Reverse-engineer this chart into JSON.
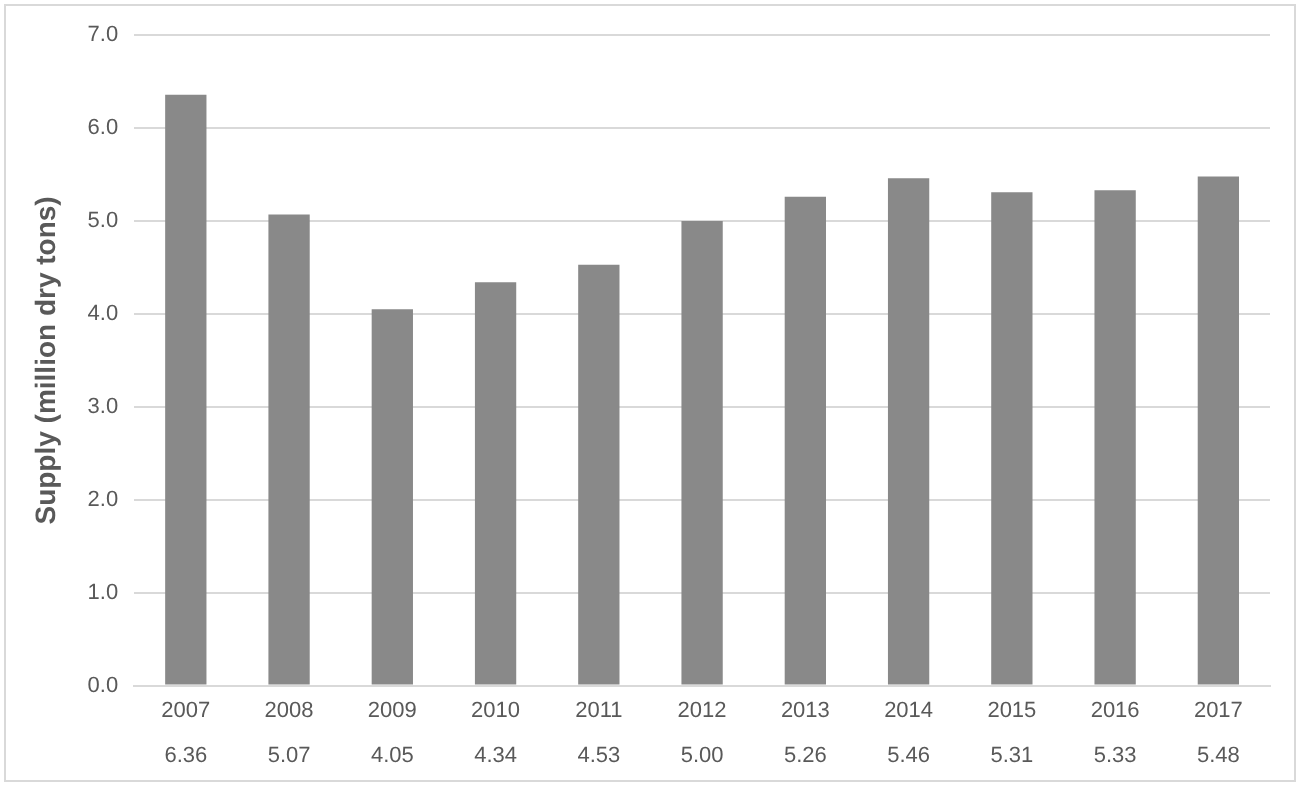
{
  "chart_data": {
    "type": "bar",
    "ylabel": "Supply (million dry tons)",
    "categories": [
      "2007",
      "2008",
      "2009",
      "2010",
      "2011",
      "2012",
      "2013",
      "2014",
      "2015",
      "2016",
      "2017"
    ],
    "values": [
      6.36,
      5.07,
      4.05,
      4.34,
      4.53,
      5.0,
      5.26,
      5.46,
      5.31,
      5.33,
      5.48
    ],
    "value_labels": [
      "6.36",
      "5.07",
      "4.05",
      "4.34",
      "4.53",
      "5.00",
      "5.26",
      "5.46",
      "5.31",
      "5.33",
      "5.48"
    ],
    "color": "#898989",
    "ylim": [
      0,
      7
    ],
    "yticks": [
      {
        "value": 0,
        "label": "0.0"
      },
      {
        "value": 1,
        "label": "1.0"
      },
      {
        "value": 2,
        "label": "2.0"
      },
      {
        "value": 3,
        "label": "3.0"
      },
      {
        "value": 4,
        "label": "4.0"
      },
      {
        "value": 5,
        "label": "5.0"
      },
      {
        "value": 6,
        "label": "6.0"
      },
      {
        "value": 7,
        "label": "7.0"
      }
    ],
    "grid": "y",
    "legend": false
  }
}
